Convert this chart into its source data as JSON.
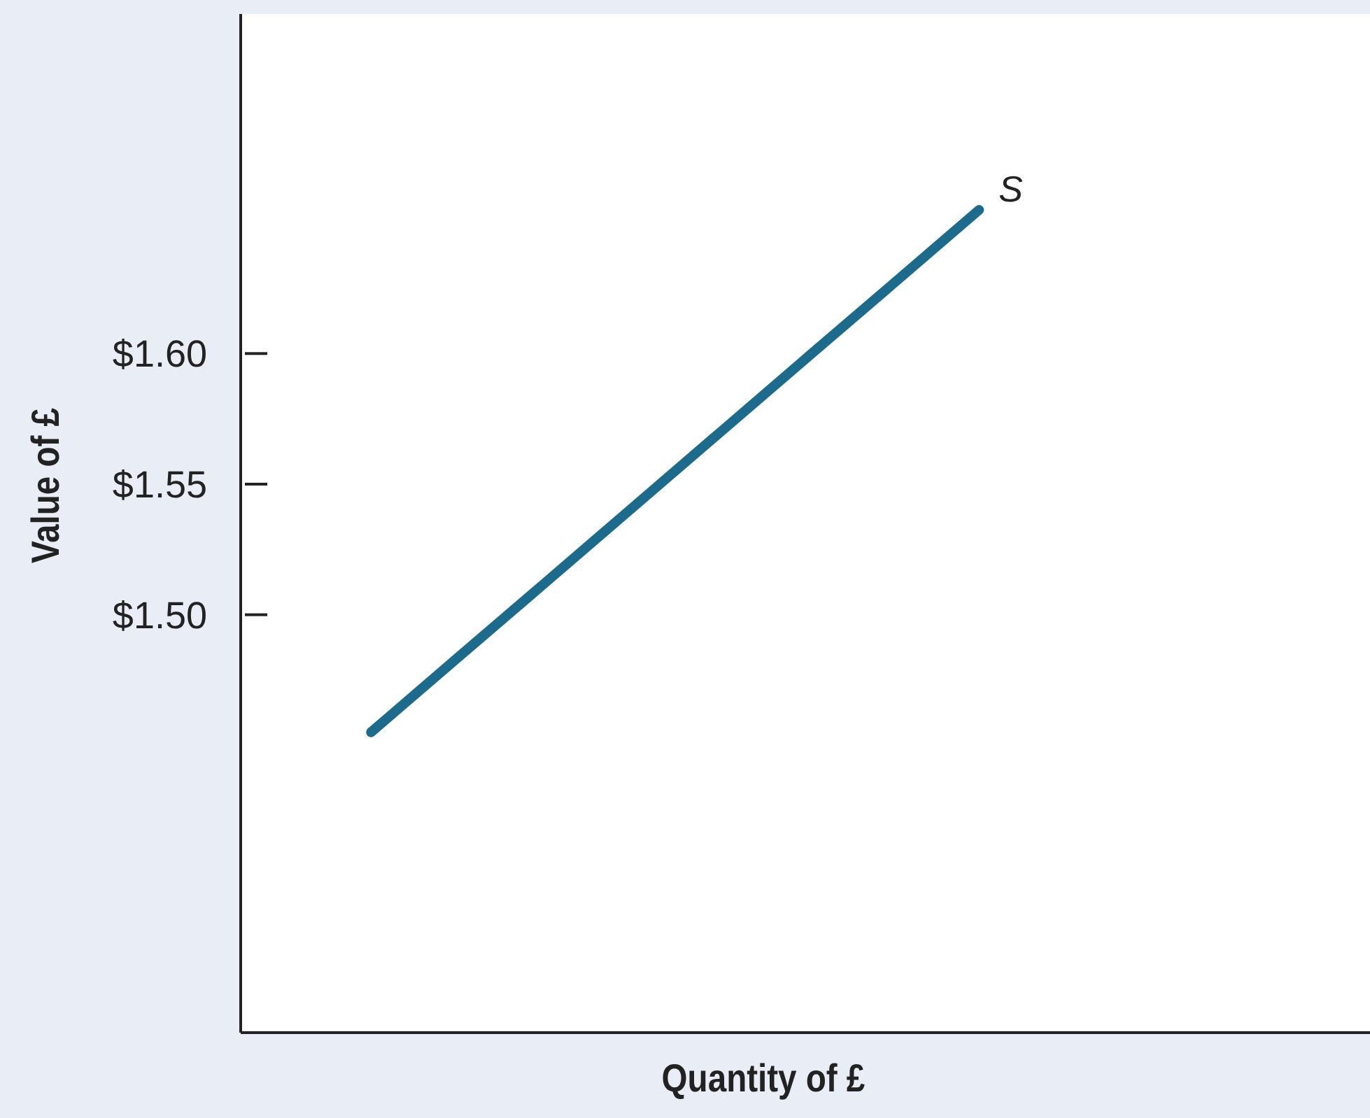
{
  "chart_data": {
    "type": "line",
    "xlabel": "Quantity of £",
    "ylabel": "Value of £",
    "categories": [
      null,
      null,
      null,
      null,
      null,
      null,
      null,
      null,
      null,
      null,
      null,
      null,
      null
    ],
    "series": [
      {
        "name": "S",
        "color": "#1d6b8c",
        "values": [
          null,
          1.455,
          1.4836,
          1.5121,
          1.5407,
          1.5693,
          1.5979,
          1.6264,
          1.655,
          null,
          null,
          null,
          null
        ]
      }
    ],
    "ylim": [
      1.34,
      1.73
    ],
    "yticks": [
      {
        "value": 1.5,
        "label": "$1.50"
      },
      {
        "value": 1.55,
        "label": "$1.55"
      },
      {
        "value": 1.6,
        "label": "$1.60"
      }
    ],
    "grid": false,
    "marker": "none",
    "line_style": "solid"
  }
}
